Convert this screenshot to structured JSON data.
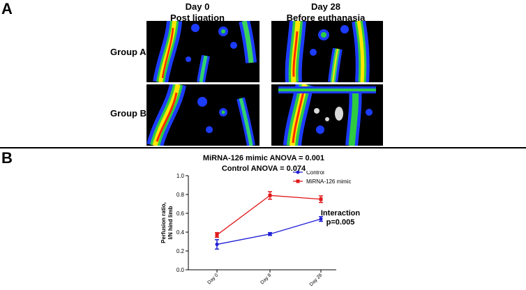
{
  "panel_a": {
    "letter": "A",
    "columns": [
      {
        "line1": "Day 0",
        "line2": "Post ligation"
      },
      {
        "line1": "Day 28",
        "line2": "Before euthanasia"
      }
    ],
    "rows": [
      "Group A",
      "Group B"
    ]
  },
  "panel_b": {
    "letter": "B",
    "anova_lines": [
      "MiRNA-126 mimic  ANOVA = 0.001",
      "Control  ANOVA = 0.074"
    ],
    "interaction_lines": [
      "Interaction",
      "p=0.005"
    ]
  },
  "colors": {
    "control": "#1f1fd6",
    "mimic": "#e0191b"
  },
  "chart_data": {
    "type": "line",
    "x": [
      "Day 0",
      "Day 8",
      "Day 28"
    ],
    "ylabel": "Perfusion ratio, I/N hind limb",
    "ylim": [
      0.0,
      1.0
    ],
    "yticks": [
      "0.0",
      "0.2",
      "0.4",
      "0.6",
      "0.8",
      "1.0"
    ],
    "legend_position": "top-right",
    "series": [
      {
        "name": "Control",
        "values": [
          0.27,
          0.38,
          0.54
        ],
        "errors": [
          0.05,
          0.015,
          0.025
        ],
        "marker": "circle"
      },
      {
        "name": "MiRNA-126 mimic",
        "values": [
          0.37,
          0.79,
          0.75
        ],
        "errors": [
          0.025,
          0.04,
          0.035
        ],
        "marker": "square"
      }
    ]
  }
}
